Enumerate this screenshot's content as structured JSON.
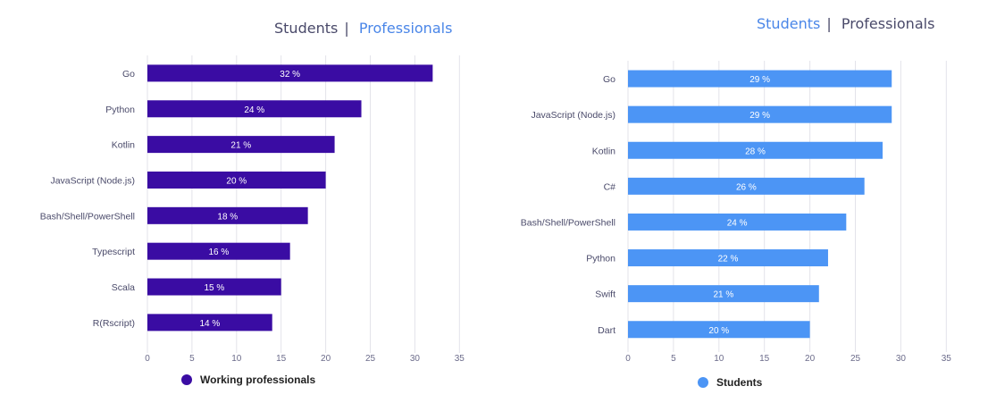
{
  "toggles": [
    {
      "students": "Students",
      "separator": "|",
      "professionals": "Professionals",
      "active": "students"
    },
    {
      "students": "Students",
      "separator": "|",
      "professionals": "Professionals",
      "active": "professionals"
    }
  ],
  "chart_data": [
    {
      "type": "bar",
      "orientation": "horizontal",
      "color": "#3a0ca3",
      "categories": [
        "Go",
        "Python",
        "Kotlin",
        "JavaScript (Node.js)",
        "Bash/Shell/PowerShell",
        "Typescript",
        "Scala",
        "R(Rscript)"
      ],
      "series": [
        {
          "name": "Working professionals",
          "values": [
            32,
            24,
            21,
            20,
            18,
            16,
            15,
            14
          ]
        }
      ],
      "value_label_suffix": " %",
      "xticks": [
        0,
        5,
        10,
        15,
        20,
        25,
        30,
        35
      ],
      "xlim": [
        0,
        35
      ],
      "grid": true,
      "legend": "bottom"
    },
    {
      "type": "bar",
      "orientation": "horizontal",
      "color": "#4c95f5",
      "categories": [
        "Go",
        "JavaScript (Node.js)",
        "Kotlin",
        "C#",
        "Bash/Shell/PowerShell",
        "Python",
        "Swift",
        "Dart"
      ],
      "series": [
        {
          "name": "Students",
          "values": [
            29,
            29,
            28,
            26,
            24,
            22,
            21,
            20
          ]
        }
      ],
      "value_label_suffix": " %",
      "xticks": [
        0,
        5,
        10,
        15,
        20,
        25,
        30,
        35
      ],
      "xlim": [
        0,
        35
      ],
      "grid": true,
      "legend": "bottom"
    }
  ]
}
